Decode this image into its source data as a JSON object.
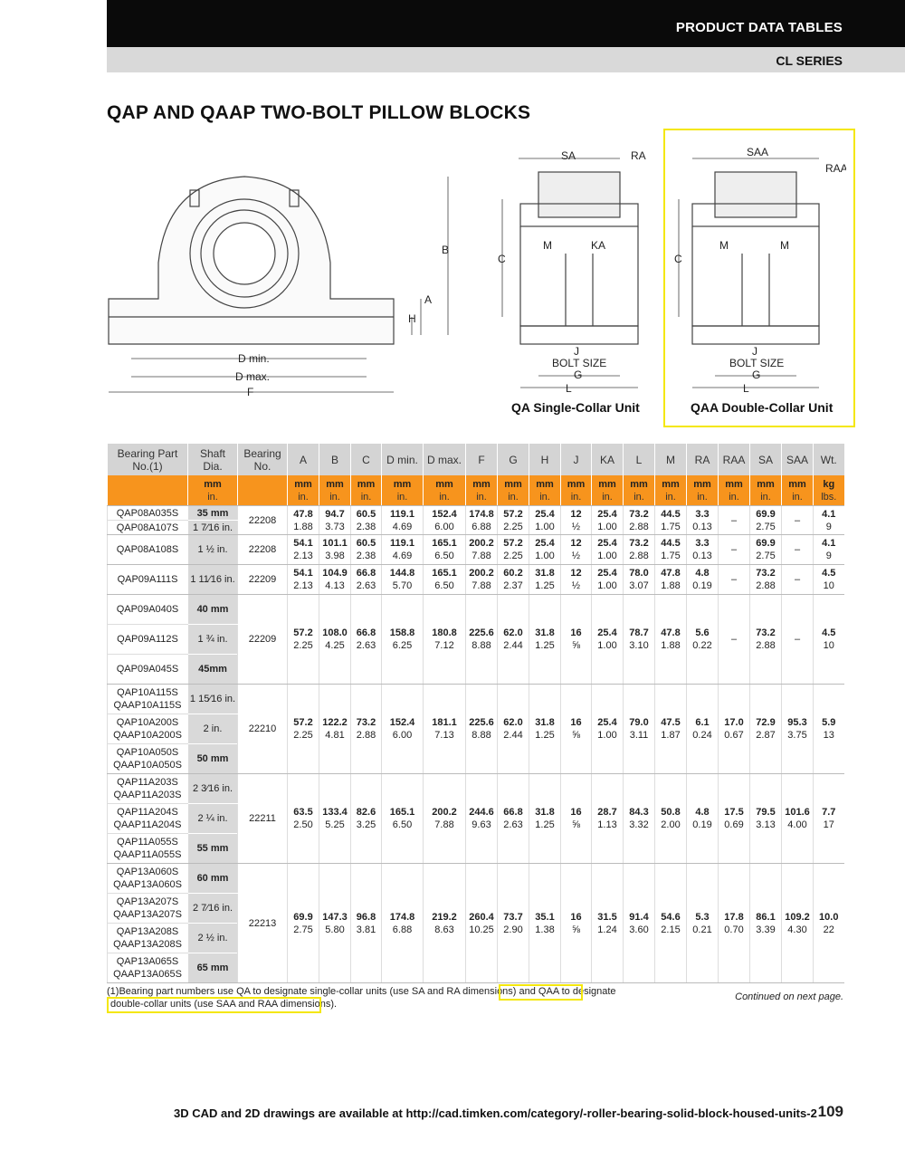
{
  "header": {
    "section": "PRODUCT DATA TABLES",
    "series": "CL SERIES"
  },
  "title": "QAP AND QAAP TWO-BOLT PILLOW BLOCKS",
  "figures": {
    "front": {
      "B": "B",
      "A": "A",
      "H": "H",
      "Dmin": "D min.",
      "Dmax": "D max.",
      "F": "F"
    },
    "single": {
      "caption": "QA Single-Collar Unit",
      "S": "SA",
      "R": "RA",
      "C": "C",
      "M": "M",
      "K": "KA",
      "J": "J",
      "bolt": "BOLT SIZE",
      "G": "G",
      "L": "L"
    },
    "double": {
      "caption": "QAA Double-Collar Unit",
      "S": "SAA",
      "R": "RAA",
      "C": "C",
      "M1": "M",
      "M2": "M",
      "J": "J",
      "bolt": "BOLT SIZE",
      "G": "G",
      "L": "L"
    }
  },
  "table": {
    "headers": [
      "Bearing Part No.(1)",
      "Shaft Dia.",
      "Bearing No.",
      "A",
      "B",
      "C",
      "D min.",
      "D max.",
      "F",
      "G",
      "H",
      "J",
      "KA",
      "L",
      "M",
      "RA",
      "RAA",
      "SA",
      "SAA",
      "Wt."
    ],
    "units": [
      "",
      "mm|in.",
      "",
      "mm|in.",
      "mm|in.",
      "mm|in.",
      "mm|in.",
      "mm|in.",
      "mm|in.",
      "mm|in.",
      "mm|in.",
      "mm|in.",
      "mm|in.",
      "mm|in.",
      "mm|in.",
      "mm|in.",
      "mm|in.",
      "mm|in.",
      "mm|in.",
      "kg|lbs."
    ],
    "groups": [
      {
        "rows": [
          {
            "part": "QAP08A035S",
            "shaft": "35 mm",
            "bold": true
          },
          {
            "part": "QAP08A107S",
            "shaft": "1 7⁄16 in."
          }
        ],
        "bearing": "22208",
        "values": [
          "47.8|1.88",
          "94.7|3.73",
          "60.5|2.38",
          "119.1|4.69",
          "152.4|6.00",
          "174.8|6.88",
          "57.2|2.25",
          "25.4|1.00",
          "12|½",
          "25.4|1.00",
          "73.2|2.88",
          "44.5|1.75",
          "3.3|0.13",
          "–",
          "69.9|2.75",
          "–",
          "4.1|9"
        ]
      },
      {
        "rows": [
          {
            "part": "QAP08A108S",
            "shaft": "1 ½ in."
          }
        ],
        "bearing": "22208",
        "values": [
          "54.1|2.13",
          "101.1|3.98",
          "60.5|2.38",
          "119.1|4.69",
          "165.1|6.50",
          "200.2|7.88",
          "57.2|2.25",
          "25.4|1.00",
          "12|½",
          "25.4|1.00",
          "73.2|2.88",
          "44.5|1.75",
          "3.3|0.13",
          "–",
          "69.9|2.75",
          "–",
          "4.1|9"
        ]
      },
      {
        "rows": [
          {
            "part": "QAP09A111S",
            "shaft": "1 11⁄16 in."
          }
        ],
        "bearing": "22209",
        "values": [
          "54.1|2.13",
          "104.9|4.13",
          "66.8|2.63",
          "144.8|5.70",
          "165.1|6.50",
          "200.2|7.88",
          "60.2|2.37",
          "31.8|1.25",
          "12|½",
          "25.4|1.00",
          "78.0|3.07",
          "47.8|1.88",
          "4.8|0.19",
          "–",
          "73.2|2.88",
          "–",
          "4.5|10"
        ]
      },
      {
        "rows": [
          {
            "part": "QAP09A040S",
            "shaft": "40 mm",
            "bold": true
          },
          {
            "part": "QAP09A112S",
            "shaft": "1 ¾ in."
          },
          {
            "part": "QAP09A045S",
            "shaft": "45mm",
            "bold": true
          }
        ],
        "bearing": "22209",
        "values": [
          "57.2|2.25",
          "108.0|4.25",
          "66.8|2.63",
          "158.8|6.25",
          "180.8|7.12",
          "225.6|8.88",
          "62.0|2.44",
          "31.8|1.25",
          "16|⅝",
          "25.4|1.00",
          "78.7|3.10",
          "47.8|1.88",
          "5.6|0.22",
          "–",
          "73.2|2.88",
          "–",
          "4.5|10"
        ]
      },
      {
        "rows": [
          {
            "part": "QAP10A115S|QAAP10A115S",
            "shaft": "1 15⁄16 in."
          },
          {
            "part": "QAP10A200S|QAAP10A200S",
            "shaft": "2 in."
          },
          {
            "part": "QAP10A050S|QAAP10A050S",
            "shaft": "50 mm",
            "bold": true
          }
        ],
        "bearing": "22210",
        "values": [
          "57.2|2.25",
          "122.2|4.81",
          "73.2|2.88",
          "152.4|6.00",
          "181.1|7.13",
          "225.6|8.88",
          "62.0|2.44",
          "31.8|1.25",
          "16|⅝",
          "25.4|1.00",
          "79.0|3.11",
          "47.5|1.87",
          "6.1|0.24",
          "17.0|0.67",
          "72.9|2.87",
          "95.3|3.75",
          "5.9|13"
        ]
      },
      {
        "rows": [
          {
            "part": "QAP11A203S|QAAP11A203S",
            "shaft": "2 3⁄16 in."
          },
          {
            "part": "QAP11A204S|QAAP11A204S",
            "shaft": "2 ¼ in."
          },
          {
            "part": "QAP11A055S|QAAP11A055S",
            "shaft": "55 mm",
            "bold": true
          }
        ],
        "bearing": "22211",
        "values": [
          "63.5|2.50",
          "133.4|5.25",
          "82.6|3.25",
          "165.1|6.50",
          "200.2|7.88",
          "244.6|9.63",
          "66.8|2.63",
          "31.8|1.25",
          "16|⅝",
          "28.7|1.13",
          "84.3|3.32",
          "50.8|2.00",
          "4.8|0.19",
          "17.5|0.69",
          "79.5|3.13",
          "101.6|4.00",
          "7.7|17"
        ]
      },
      {
        "rows": [
          {
            "part": "QAP13A060S|QAAP13A060S",
            "shaft": "60 mm",
            "bold": true
          },
          {
            "part": "QAP13A207S|QAAP13A207S",
            "shaft": "2 7⁄16 in."
          },
          {
            "part": "QAP13A208S|QAAP13A208S",
            "shaft": "2 ½ in."
          },
          {
            "part": "QAP13A065S|QAAP13A065S",
            "shaft": "65 mm",
            "bold": true
          }
        ],
        "bearing": "22213",
        "values": [
          "69.9|2.75",
          "147.3|5.80",
          "96.8|3.81",
          "174.8|6.88",
          "219.2|8.63",
          "260.4|10.25",
          "73.7|2.90",
          "35.1|1.38",
          "16|⅝",
          "31.5|1.24",
          "91.4|3.60",
          "54.6|2.15",
          "5.3|0.21",
          "17.8|0.70",
          "86.1|3.39",
          "109.2|4.30",
          "10.0|22"
        ]
      }
    ]
  },
  "footnote": {
    "line1": "(1)Bearing part numbers use QA to designate single-collar units (use SA and RA dimensions) and QAA to designate",
    "line2": "double-collar units (use SAA and RAA dimensions)."
  },
  "continued": "Continued on next page.",
  "footer": {
    "cad": "3D CAD and 2D drawings are available at http://cad.timken.com/category/-roller-bearing-solid-block-housed-units-2",
    "page": "109"
  },
  "colors": {
    "orange": "#f7941d",
    "highlight": "#f4e70c",
    "header_gray": "#d4d4d4"
  }
}
